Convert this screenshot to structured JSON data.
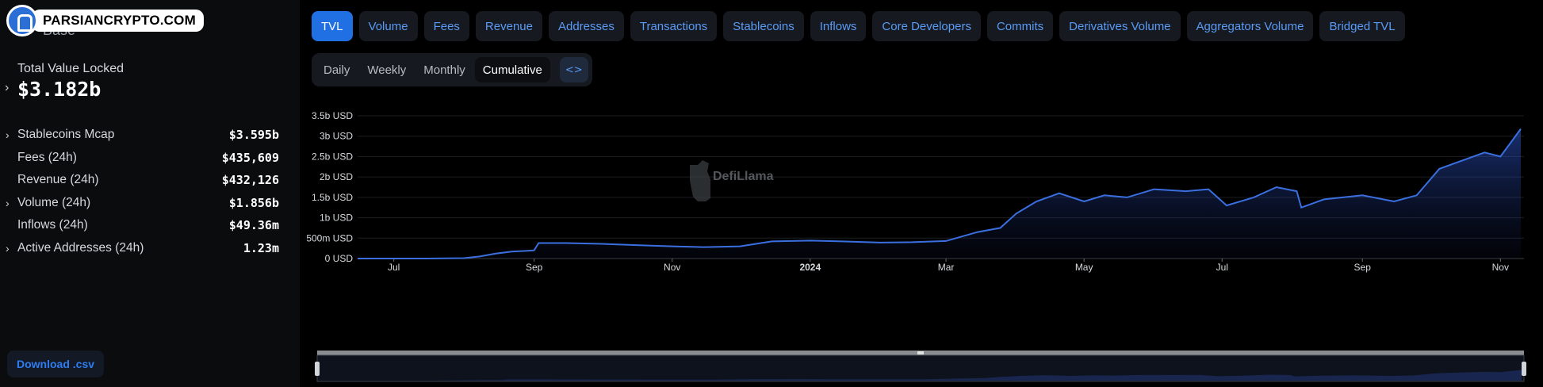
{
  "watermark": {
    "text": "PARSIANCRYPTO.COM"
  },
  "chain": {
    "name": "Base"
  },
  "tvl": {
    "label": "Total Value Locked",
    "value": "$3.182b"
  },
  "stats": [
    {
      "label": "Stablecoins Mcap",
      "value": "$3.595b",
      "expandable": true
    },
    {
      "label": "Fees (24h)",
      "value": "$435,609",
      "expandable": false
    },
    {
      "label": "Revenue (24h)",
      "value": "$432,126",
      "expandable": false
    },
    {
      "label": "Volume (24h)",
      "value": "$1.856b",
      "expandable": true
    },
    {
      "label": "Inflows (24h)",
      "value": "$49.36m",
      "expandable": false
    },
    {
      "label": "Active Addresses (24h)",
      "value": "1.23m",
      "expandable": true
    }
  ],
  "download": {
    "label": "Download .csv"
  },
  "tabs": [
    {
      "label": "TVL",
      "active": true
    },
    {
      "label": "Volume"
    },
    {
      "label": "Fees"
    },
    {
      "label": "Revenue"
    },
    {
      "label": "Addresses"
    },
    {
      "label": "Transactions"
    },
    {
      "label": "Stablecoins"
    },
    {
      "label": "Inflows"
    },
    {
      "label": "Core Developers"
    },
    {
      "label": "Commits"
    },
    {
      "label": "Derivatives Volume"
    },
    {
      "label": "Aggregators Volume"
    },
    {
      "label": "Bridged TVL"
    }
  ],
  "periods": [
    {
      "label": "Daily"
    },
    {
      "label": "Weekly"
    },
    {
      "label": "Monthly"
    },
    {
      "label": "Cumulative",
      "active": true
    }
  ],
  "embed": {
    "icon": "code-icon",
    "glyph": "<>"
  },
  "brand": {
    "text": "DefiLlama"
  },
  "colors": {
    "accent": "#2170e3",
    "line": "#3b6fe0",
    "tab_text": "#5a9bf6"
  },
  "chart_data": {
    "type": "area",
    "y_unit": "USD",
    "y_ticks": [
      "3.5b USD",
      "3b USD",
      "2.5b USD",
      "2b USD",
      "1.5b USD",
      "1b USD",
      "500m USD",
      "0 USD"
    ],
    "y_tick_values": [
      3.5,
      3.0,
      2.5,
      2.0,
      1.5,
      1.0,
      0.5,
      0
    ],
    "ylim": [
      0,
      3.5
    ],
    "x_ticks": [
      {
        "label": "Jul",
        "date": "2023-07-01"
      },
      {
        "label": "Sep",
        "date": "2023-09-01"
      },
      {
        "label": "Nov",
        "date": "2023-11-01"
      },
      {
        "label": "2024",
        "date": "2024-01-01",
        "bold": true
      },
      {
        "label": "Mar",
        "date": "2024-03-01"
      },
      {
        "label": "May",
        "date": "2024-05-01"
      },
      {
        "label": "Jul",
        "date": "2024-07-01"
      },
      {
        "label": "Sep",
        "date": "2024-09-01"
      },
      {
        "label": "Nov",
        "date": "2024-11-01"
      }
    ],
    "xlim": [
      "2023-06-15",
      "2024-11-10"
    ],
    "grid": true,
    "series": [
      {
        "values_billion_usd": [
          [
            "2023-06-15",
            0.0
          ],
          [
            "2023-07-15",
            0.0
          ],
          [
            "2023-08-01",
            0.01
          ],
          [
            "2023-08-08",
            0.05
          ],
          [
            "2023-08-15",
            0.12
          ],
          [
            "2023-08-22",
            0.17
          ],
          [
            "2023-08-29",
            0.19
          ],
          [
            "2023-09-01",
            0.2
          ],
          [
            "2023-09-03",
            0.38
          ],
          [
            "2023-09-15",
            0.38
          ],
          [
            "2023-10-01",
            0.36
          ],
          [
            "2023-10-15",
            0.33
          ],
          [
            "2023-11-01",
            0.3
          ],
          [
            "2023-11-15",
            0.28
          ],
          [
            "2023-12-01",
            0.3
          ],
          [
            "2023-12-15",
            0.42
          ],
          [
            "2024-01-01",
            0.44
          ],
          [
            "2024-01-15",
            0.42
          ],
          [
            "2024-02-01",
            0.39
          ],
          [
            "2024-02-15",
            0.4
          ],
          [
            "2024-03-01",
            0.43
          ],
          [
            "2024-03-15",
            0.65
          ],
          [
            "2024-03-25",
            0.75
          ],
          [
            "2024-04-01",
            1.1
          ],
          [
            "2024-04-10",
            1.4
          ],
          [
            "2024-04-20",
            1.6
          ],
          [
            "2024-05-01",
            1.4
          ],
          [
            "2024-05-10",
            1.55
          ],
          [
            "2024-05-20",
            1.5
          ],
          [
            "2024-06-01",
            1.7
          ],
          [
            "2024-06-15",
            1.65
          ],
          [
            "2024-06-25",
            1.7
          ],
          [
            "2024-07-03",
            1.3
          ],
          [
            "2024-07-15",
            1.5
          ],
          [
            "2024-07-25",
            1.75
          ],
          [
            "2024-08-03",
            1.65
          ],
          [
            "2024-08-05",
            1.25
          ],
          [
            "2024-08-15",
            1.45
          ],
          [
            "2024-09-01",
            1.55
          ],
          [
            "2024-09-15",
            1.4
          ],
          [
            "2024-09-25",
            1.55
          ],
          [
            "2024-10-05",
            2.2
          ],
          [
            "2024-10-15",
            2.4
          ],
          [
            "2024-10-25",
            2.6
          ],
          [
            "2024-11-01",
            2.5
          ],
          [
            "2024-11-05",
            2.8
          ],
          [
            "2024-11-10",
            3.18
          ]
        ]
      }
    ]
  }
}
